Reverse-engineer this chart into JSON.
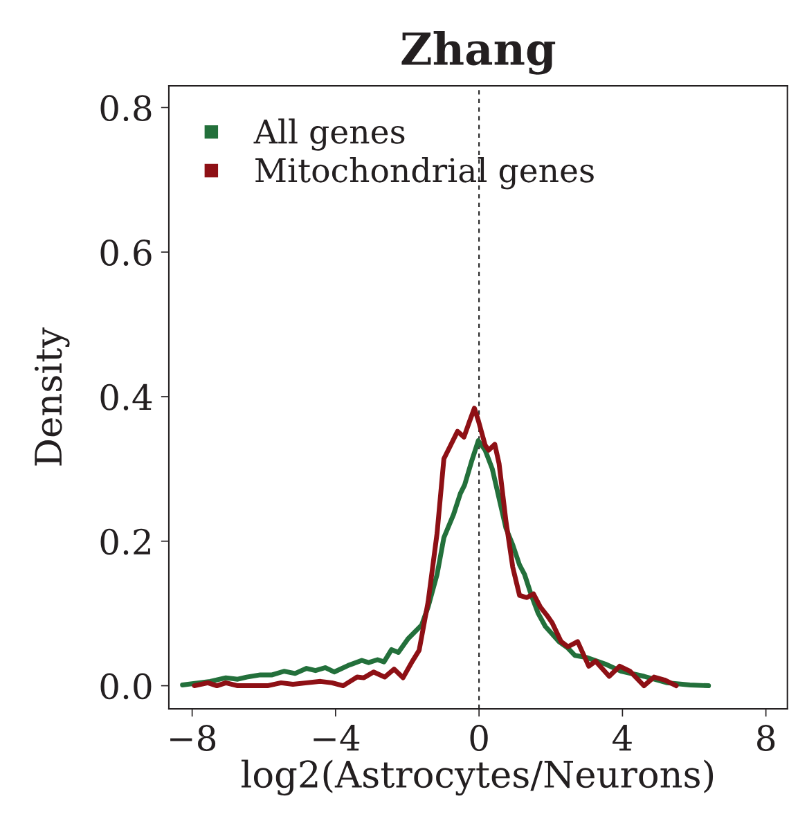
{
  "chart_data": {
    "type": "line",
    "title": "Zhang",
    "xlabel": "log2(Astrocytes/Neurons)",
    "ylabel": "Density",
    "xlim": [
      -8.65,
      8.6
    ],
    "ylim": [
      -0.032,
      0.83
    ],
    "xticks": [
      {
        "value": -8,
        "label": "−8"
      },
      {
        "value": -4,
        "label": "−4"
      },
      0,
      4,
      8
    ],
    "yticks": [
      {
        "value": 0,
        "label": "0.0"
      },
      0.2,
      0.4,
      0.6,
      0.8
    ],
    "grid": false,
    "legend": "top left",
    "marker": "none",
    "line_style": "solid",
    "ref_lines": [
      {
        "axis": "x",
        "value": 0,
        "label": null,
        "color": "#222222",
        "line_style": "dashed"
      }
    ],
    "series": [
      {
        "name": "All genes",
        "color": "#23703b",
        "x": [
          -8.27,
          -7.5,
          -7.06,
          -6.73,
          -6.48,
          -6.1,
          -5.77,
          -5.44,
          -5.13,
          -4.81,
          -4.56,
          -4.29,
          -4.04,
          -3.65,
          -3.27,
          -3.08,
          -2.83,
          -2.65,
          -2.44,
          -2.25,
          -1.98,
          -1.6,
          -1.42,
          -1.17,
          -0.98,
          -0.71,
          -0.52,
          -0.4,
          -0.21,
          -0.02,
          0.17,
          0.37,
          0.56,
          0.75,
          0.94,
          1.13,
          1.27,
          1.46,
          1.65,
          1.85,
          2.23,
          2.48,
          2.67,
          3.0,
          3.52,
          3.96,
          4.6,
          5.25,
          5.88,
          6.4
        ],
        "values": [
          0.001,
          0.006,
          0.011,
          0.009,
          0.012,
          0.015,
          0.015,
          0.02,
          0.017,
          0.024,
          0.021,
          0.025,
          0.019,
          0.028,
          0.035,
          0.032,
          0.036,
          0.033,
          0.05,
          0.046,
          0.065,
          0.084,
          0.109,
          0.154,
          0.205,
          0.237,
          0.266,
          0.278,
          0.31,
          0.339,
          0.326,
          0.3,
          0.259,
          0.218,
          0.195,
          0.167,
          0.154,
          0.125,
          0.1,
          0.082,
          0.061,
          0.052,
          0.042,
          0.039,
          0.03,
          0.02,
          0.013,
          0.004,
          0.001,
          0.0
        ]
      },
      {
        "name": "Mitochondrial genes",
        "color": "#8e1015",
        "x": [
          -7.94,
          -7.56,
          -7.31,
          -7.06,
          -6.73,
          -5.9,
          -5.52,
          -5.19,
          -4.81,
          -4.42,
          -4.1,
          -3.79,
          -3.4,
          -3.21,
          -2.94,
          -2.63,
          -2.37,
          -2.12,
          -1.87,
          -1.67,
          -1.42,
          -1.17,
          -0.98,
          -0.79,
          -0.6,
          -0.42,
          -0.27,
          -0.13,
          -0.02,
          0.17,
          0.27,
          0.44,
          0.56,
          0.75,
          0.94,
          1.13,
          1.33,
          1.52,
          1.71,
          1.9,
          2.04,
          2.29,
          2.48,
          2.75,
          3.06,
          3.25,
          3.63,
          3.92,
          4.21,
          4.6,
          4.88,
          5.17,
          5.5
        ],
        "values": [
          0.0,
          0.004,
          0.0,
          0.004,
          0.0,
          0.0,
          0.004,
          0.002,
          0.004,
          0.006,
          0.004,
          0.0,
          0.012,
          0.011,
          0.019,
          0.012,
          0.023,
          0.011,
          0.033,
          0.049,
          0.116,
          0.211,
          0.314,
          0.333,
          0.352,
          0.344,
          0.365,
          0.384,
          0.367,
          0.333,
          0.326,
          0.334,
          0.307,
          0.228,
          0.164,
          0.125,
          0.122,
          0.127,
          0.109,
          0.097,
          0.087,
          0.061,
          0.054,
          0.061,
          0.027,
          0.034,
          0.013,
          0.027,
          0.02,
          0.0,
          0.012,
          0.008,
          0.0
        ]
      }
    ]
  }
}
